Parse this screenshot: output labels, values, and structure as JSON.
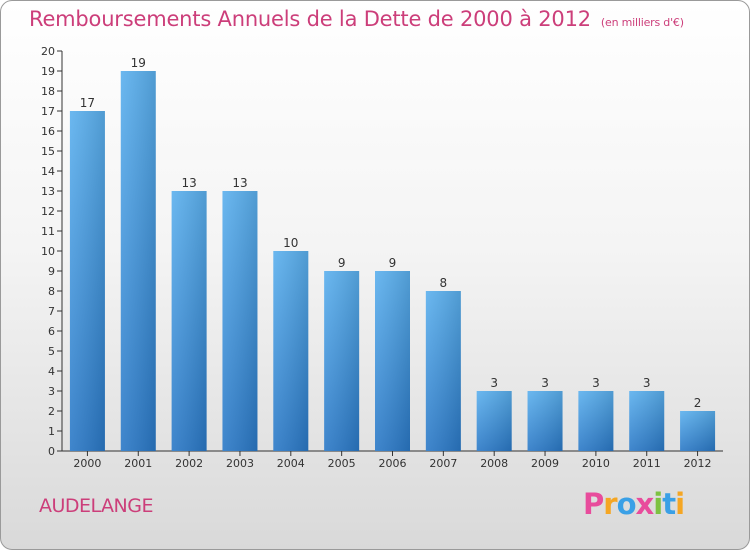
{
  "title": "Remboursements Annuels de la Dette de 2000 à 2012",
  "subtitle": "(en milliers d'€)",
  "town": "AUDELANGE",
  "logo": {
    "letters": [
      "P",
      "r",
      "o",
      "x",
      "i",
      "t",
      "i"
    ],
    "colors": [
      "#e84c9c",
      "#f5a623",
      "#3aa0e6",
      "#e84c9c",
      "#7dc242",
      "#3aa0e6",
      "#f5a623"
    ]
  },
  "colors": {
    "bar": "#4a9be0",
    "accent": "#cc3e7a",
    "axis": "#333333"
  },
  "chart_data": {
    "type": "bar",
    "categories": [
      "2000",
      "2001",
      "2002",
      "2003",
      "2004",
      "2005",
      "2006",
      "2007",
      "2008",
      "2009",
      "2010",
      "2011",
      "2012"
    ],
    "values": [
      17,
      19,
      13,
      13,
      10,
      9,
      9,
      8,
      3,
      3,
      3,
      3,
      2
    ],
    "ylim": [
      0,
      20
    ],
    "yticks": [
      "0",
      "1",
      "2",
      "3",
      "4",
      "5",
      "6",
      "7",
      "8",
      "9",
      "10",
      "11",
      "12",
      "13",
      "14",
      "15",
      "16",
      "17",
      "18",
      "19",
      "20"
    ],
    "title": "Remboursements Annuels de la Dette de 2000 à 2012",
    "xlabel": "",
    "ylabel": "",
    "grid": false
  }
}
